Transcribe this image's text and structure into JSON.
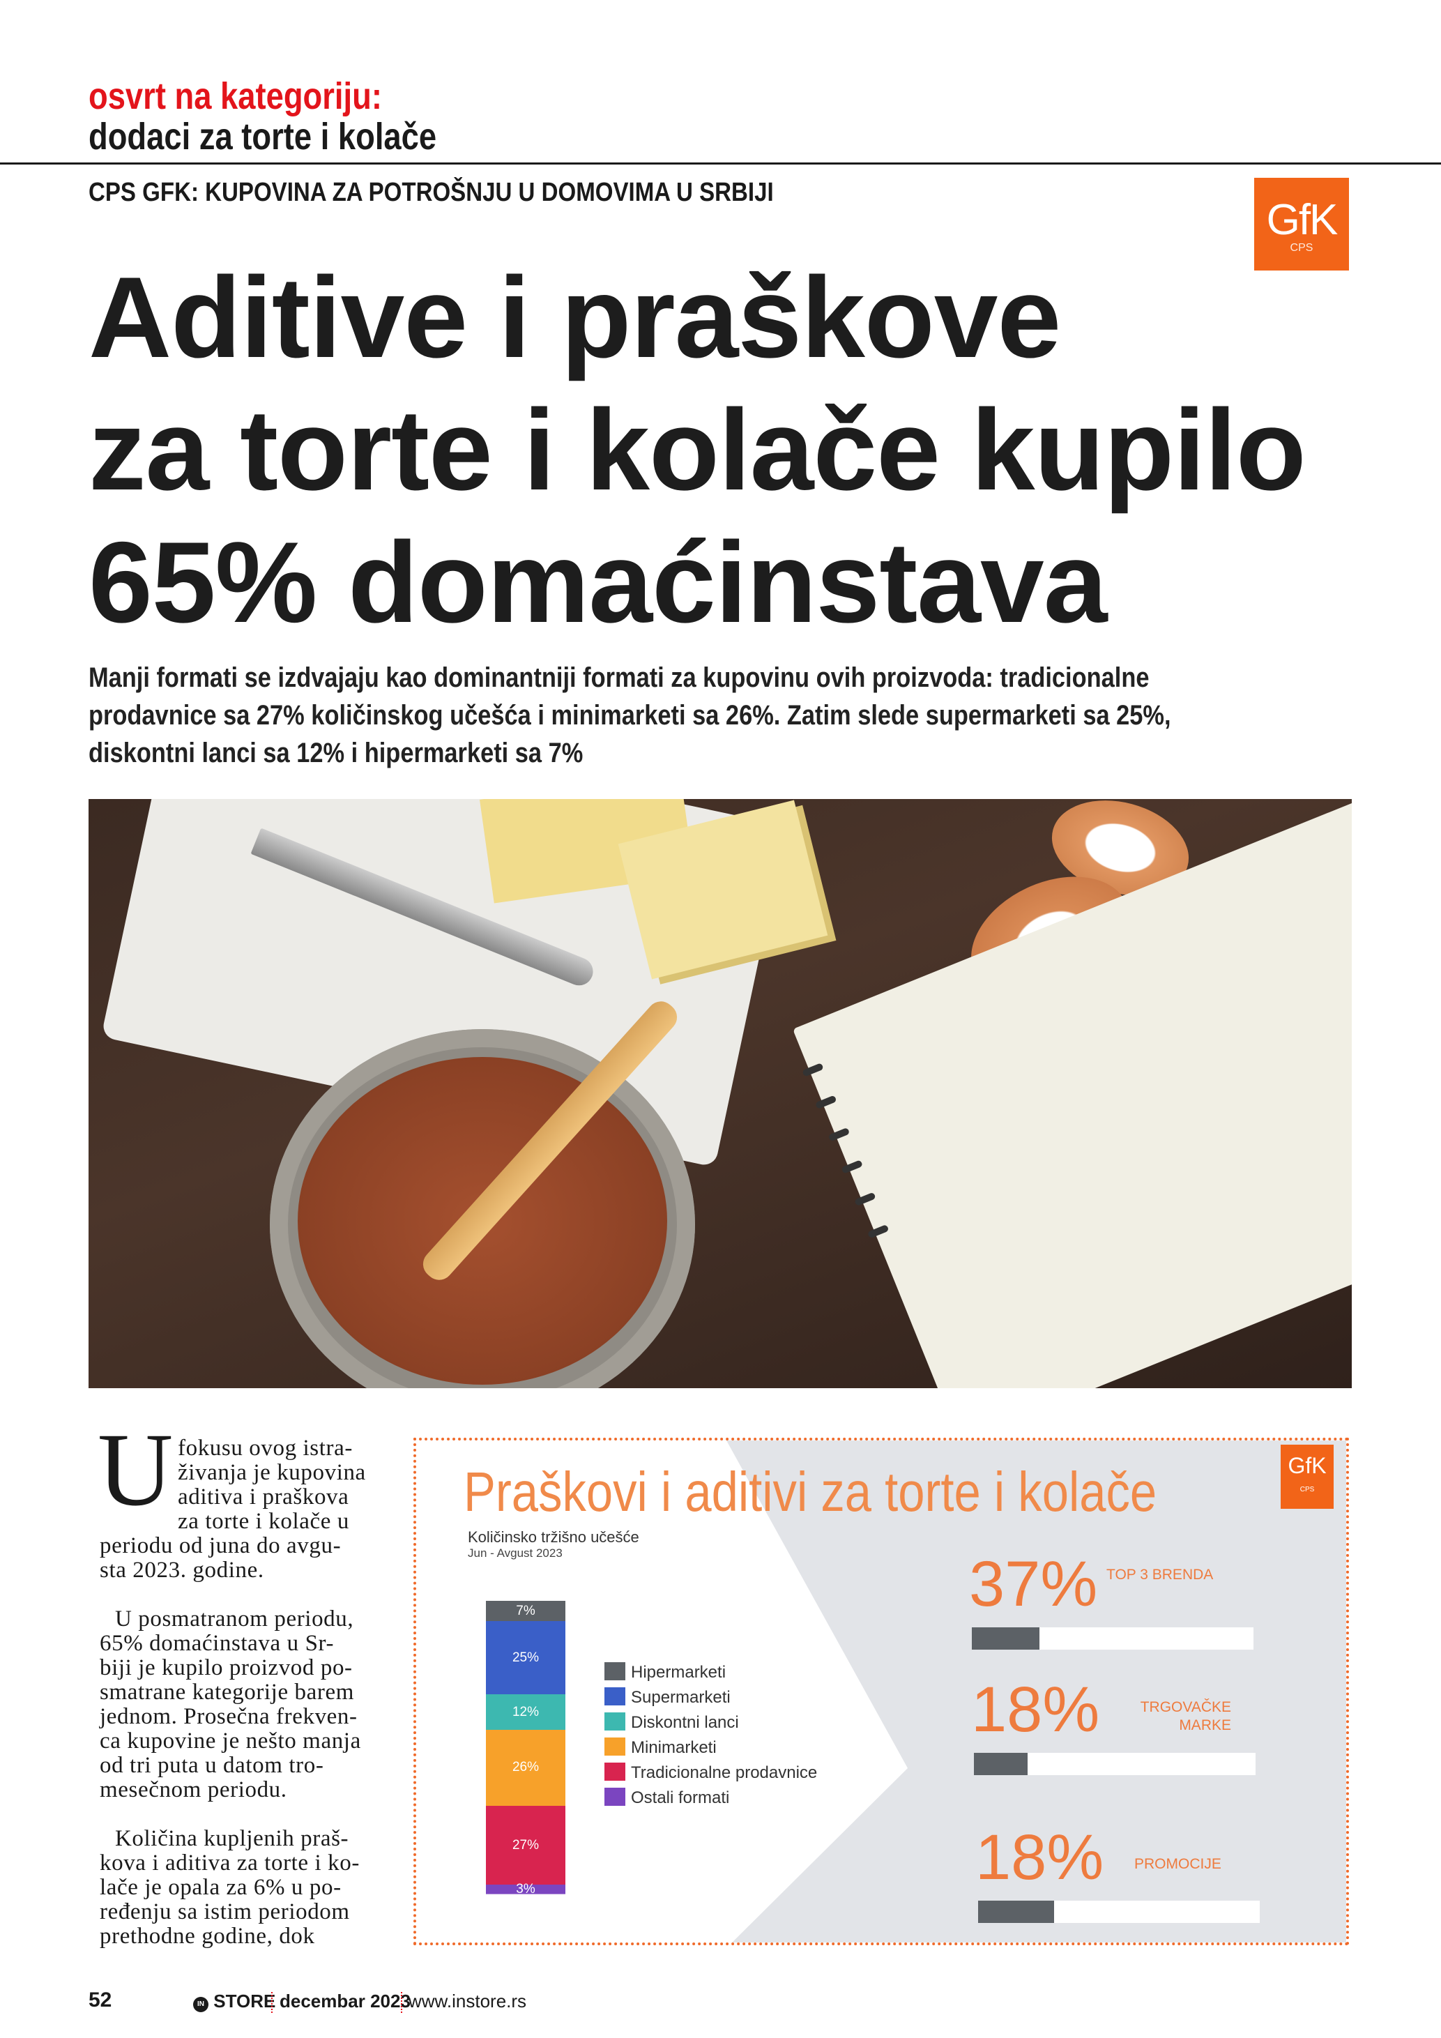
{
  "header": {
    "kicker": "osvrt na kategoriju:",
    "section": "dodaci za torte i kolače",
    "source_line": "CPS GFK: KUPOVINA ZA POTROŠNJU U DOMOVIMA U SRBIJI",
    "logo": {
      "text": "GfK",
      "sub": "CPS",
      "color": "#f26418"
    }
  },
  "article": {
    "headline_lines": [
      "Aditive i praškove",
      "za torte i kolače kupilo",
      "65% domaćinstava"
    ],
    "lead_lines": [
      "Manji formati se izdvajaju kao dominantniji formati za kupovinu ovih proizvoda: tradicionalne",
      "prodavnice sa 27% količinskog učešća i minimarketi sa 26%. Zatim slede supermarketi sa 25%,",
      "diskontni lanci sa 12% i hipermarketi sa 7%"
    ],
    "drop_cap": "U",
    "body": {
      "p1_lines": [
        "fokusu ovog istra-",
        "živanja je kupovina",
        "aditiva i praškova",
        "za torte i kolače u",
        "periodu od juna do avgu-",
        "sta 2023. godine."
      ],
      "p2_lines": [
        "U posmatranom periodu,",
        "65% domaćinstava u Sr-",
        "biji je kupilo proizvod po-",
        "smatrane kategorije barem",
        "jednom. Prosečna frekven-",
        "ca kupovine je nešto manja",
        "od tri puta u datom tro-",
        "mesečnom periodu."
      ],
      "p3_lines": [
        "Količina kupljenih praš-",
        "kova i aditiva za torte i ko-",
        "lače je opala za 6% u po-",
        "ređenju sa istim periodom",
        "prethodne godine, dok"
      ]
    }
  },
  "infographic": {
    "title": "Praškovi i aditivi za torte i kolače",
    "logo": {
      "text": "GfK",
      "sub": "CPS"
    },
    "accent": "#f08a4a",
    "border_color": "#f06a2a",
    "kpis": [
      {
        "value": "37%",
        "label_lines": [
          "TOP 3 BRENDA"
        ],
        "bar_fill": 0.24
      },
      {
        "value": "18%",
        "label_lines": [
          "TRGOVAČKE",
          "MARKE"
        ],
        "bar_fill": 0.19
      },
      {
        "value": "18%",
        "label_lines": [
          "PROMOCIJE"
        ],
        "bar_fill": 0.27
      }
    ]
  },
  "chart_data": {
    "type": "bar",
    "stacked": true,
    "title": "Količinsko tržišno učešće",
    "subtitle": "Jun - Avgust 2023",
    "categories": [
      "Jun - Avgust 2023"
    ],
    "legend_position": "right",
    "series": [
      {
        "name": "Hipermarketi",
        "values": [
          7
        ],
        "label": "7%",
        "color": "#5c6166"
      },
      {
        "name": "Supermarketi",
        "values": [
          25
        ],
        "label": "25%",
        "color": "#3a5fc8"
      },
      {
        "name": "Diskontni lanci",
        "values": [
          12
        ],
        "label": "12%",
        "color": "#3db8b0"
      },
      {
        "name": "Minimarketi",
        "values": [
          26
        ],
        "label": "26%",
        "color": "#f7a12a"
      },
      {
        "name": "Tradicionalne prodavnice",
        "values": [
          27
        ],
        "label": "27%",
        "color": "#d8244f"
      },
      {
        "name": "Ostali formati",
        "values": [
          3
        ],
        "label": "3%",
        "color": "#7b45c0"
      }
    ],
    "ylim": [
      0,
      100
    ]
  },
  "footer": {
    "page_number": "52",
    "brand": "STORE",
    "brand_mark": "IN",
    "issue": "decembar 2023",
    "website": "www.instore.rs"
  }
}
